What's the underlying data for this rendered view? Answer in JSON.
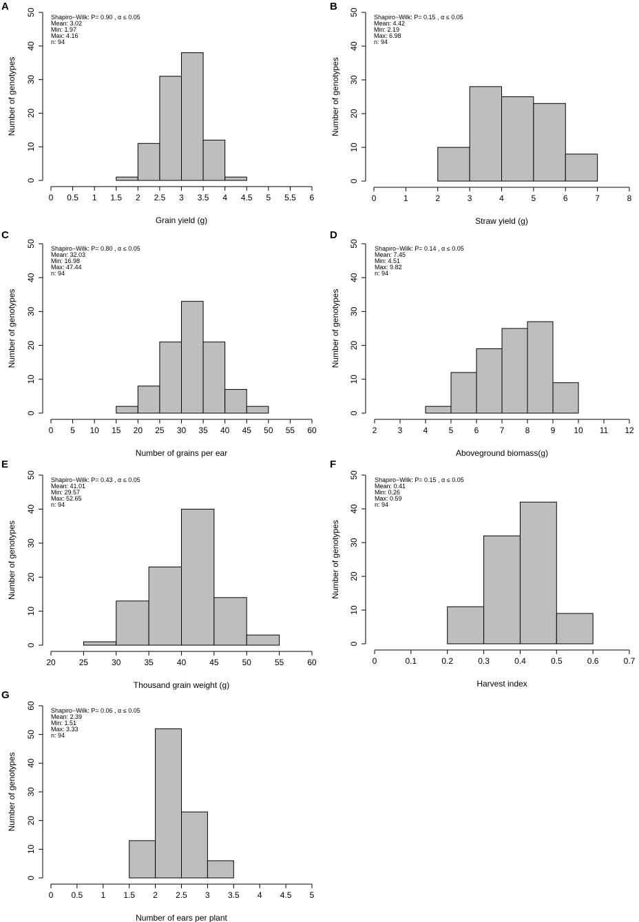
{
  "figure": {
    "bar_fill": "#bebebe",
    "stroke_color": "#000000"
  },
  "chart_data": [
    {
      "id": "A",
      "type": "bar",
      "panel_label": "A",
      "title": "",
      "xlabel": "Grain yield (g)",
      "ylabel": "Number of genotypes",
      "xlim": [
        0,
        6
      ],
      "ylim": [
        0,
        50
      ],
      "x_ticks": [
        "0",
        "0.5",
        "1",
        "1.5",
        "2",
        "2.5",
        "3",
        "3.5",
        "4",
        "4.5",
        "5",
        "5.5",
        "6"
      ],
      "y_ticks": [
        "0",
        "10",
        "20",
        "30",
        "40",
        "50"
      ],
      "bins": [
        [
          1.5,
          2
        ],
        [
          2,
          2.5
        ],
        [
          2.5,
          3
        ],
        [
          3,
          3.5
        ],
        [
          3.5,
          4
        ],
        [
          4,
          4.5
        ]
      ],
      "counts": [
        1,
        11,
        31,
        38,
        12,
        1
      ],
      "stats": [
        "Shapiro−Wilk: P= 0.90 , α ≤ 0.05",
        "Mean: 3.02",
        "Min: 1.97",
        "Max: 4.16",
        "n: 94"
      ]
    },
    {
      "id": "B",
      "type": "bar",
      "panel_label": "B",
      "title": "",
      "xlabel": "Straw yield (g)",
      "ylabel": "Number of genotypes",
      "xlim": [
        0,
        8
      ],
      "ylim": [
        0,
        50
      ],
      "x_ticks": [
        "0",
        "1",
        "2",
        "3",
        "4",
        "5",
        "6",
        "7",
        "8"
      ],
      "y_ticks": [
        "0",
        "10",
        "20",
        "30",
        "40",
        "50"
      ],
      "bins": [
        [
          2,
          3
        ],
        [
          3,
          4
        ],
        [
          4,
          5
        ],
        [
          5,
          6
        ],
        [
          6,
          7
        ]
      ],
      "counts": [
        10,
        28,
        25,
        23,
        8
      ],
      "stats": [
        "Shapiro−Wilk: P= 0.15 , α ≤ 0.05",
        "Mean: 4.42",
        "Min: 2.19",
        "Max: 6.98",
        "n: 94"
      ]
    },
    {
      "id": "C",
      "type": "bar",
      "panel_label": "C",
      "title": "",
      "xlabel": "Number of grains per ear",
      "ylabel": "Number of genotypes",
      "xlim": [
        0,
        60
      ],
      "ylim": [
        0,
        50
      ],
      "x_ticks": [
        "0",
        "5",
        "10",
        "15",
        "20",
        "25",
        "30",
        "35",
        "40",
        "45",
        "50",
        "55",
        "60"
      ],
      "y_ticks": [
        "0",
        "10",
        "20",
        "30",
        "40",
        "50"
      ],
      "bins": [
        [
          15,
          20
        ],
        [
          20,
          25
        ],
        [
          25,
          30
        ],
        [
          30,
          35
        ],
        [
          35,
          40
        ],
        [
          40,
          45
        ],
        [
          45,
          50
        ]
      ],
      "counts": [
        2,
        8,
        21,
        33,
        21,
        7,
        2
      ],
      "stats": [
        "Shapiro−Wilk: P= 0.80 , α ≤ 0.05",
        "Mean: 32.03",
        "Min: 16.98",
        "Max: 47.44",
        "n: 94"
      ]
    },
    {
      "id": "D",
      "type": "bar",
      "panel_label": "D",
      "title": "",
      "xlabel": "Aboveground biomass(g)",
      "ylabel": "Number of genotypes",
      "xlim": [
        2,
        12
      ],
      "ylim": [
        0,
        50
      ],
      "x_ticks": [
        "2",
        "3",
        "4",
        "5",
        "6",
        "7",
        "8",
        "9",
        "10",
        "11",
        "12"
      ],
      "y_ticks": [
        "0",
        "10",
        "20",
        "30",
        "40",
        "50"
      ],
      "bins": [
        [
          4,
          5
        ],
        [
          5,
          6
        ],
        [
          6,
          7
        ],
        [
          7,
          8
        ],
        [
          8,
          9
        ],
        [
          9,
          10
        ]
      ],
      "counts": [
        2,
        12,
        19,
        25,
        27,
        9
      ],
      "stats": [
        "Shapiro−Wilk: P= 0.14 , α ≤ 0.05",
        "Mean: 7.45",
        "Min: 4.51",
        "Max: 9.82",
        "n: 94"
      ]
    },
    {
      "id": "E",
      "type": "bar",
      "panel_label": "E",
      "title": "",
      "xlabel": "Thousand grain weight (g)",
      "ylabel": "Number of genotypes",
      "xlim": [
        20,
        60
      ],
      "ylim": [
        0,
        50
      ],
      "x_ticks": [
        "20",
        "25",
        "30",
        "35",
        "40",
        "45",
        "50",
        "55",
        "60"
      ],
      "y_ticks": [
        "0",
        "10",
        "20",
        "30",
        "40",
        "50"
      ],
      "bins": [
        [
          25,
          30
        ],
        [
          30,
          35
        ],
        [
          35,
          40
        ],
        [
          40,
          45
        ],
        [
          45,
          50
        ],
        [
          50,
          55
        ]
      ],
      "counts": [
        1,
        13,
        23,
        40,
        14,
        3
      ],
      "stats": [
        "Shapiro−Wilk: P= 0.43 , α ≤ 0.05",
        "Mean: 41.01",
        "Min: 29.57",
        "Max: 52.65",
        "n: 94"
      ]
    },
    {
      "id": "F",
      "type": "bar",
      "panel_label": "F",
      "title": "",
      "xlabel": "Harvest index",
      "ylabel": "Number of genotypes",
      "xlim": [
        0,
        0.7
      ],
      "ylim": [
        0,
        50
      ],
      "x_ticks": [
        "0",
        "0.1",
        "0.2",
        "0.3",
        "0.4",
        "0.5",
        "0.6",
        "0.7"
      ],
      "y_ticks": [
        "0",
        "10",
        "20",
        "30",
        "40",
        "50"
      ],
      "bins": [
        [
          0.2,
          0.3
        ],
        [
          0.3,
          0.4
        ],
        [
          0.4,
          0.5
        ],
        [
          0.5,
          0.6
        ]
      ],
      "counts": [
        11,
        32,
        42,
        9
      ],
      "stats": [
        "Shapiro−Wilk: P= 0.15 , α ≤ 0.05",
        "Mean: 0.41",
        "Min: 0.26",
        "Max: 0.59",
        "n: 94"
      ]
    },
    {
      "id": "G",
      "type": "bar",
      "panel_label": "G",
      "title": "",
      "xlabel": "Number of ears per plant",
      "ylabel": "Number of genotypes",
      "xlim": [
        0,
        5
      ],
      "ylim": [
        0,
        60
      ],
      "x_ticks": [
        "0",
        "0.5",
        "1",
        "1.5",
        "2",
        "2.5",
        "3",
        "3.5",
        "4",
        "4.5",
        "5"
      ],
      "y_ticks": [
        "0",
        "10",
        "20",
        "30",
        "40",
        "50",
        "60"
      ],
      "bins": [
        [
          1.5,
          2
        ],
        [
          2,
          2.5
        ],
        [
          2.5,
          3
        ],
        [
          3,
          3.5
        ]
      ],
      "counts": [
        13,
        52,
        23,
        6
      ],
      "stats": [
        "Shapiro−Wilk: P= 0.06 , α ≤ 0.05",
        "Mean: 2.39",
        "Min: 1.51",
        "Max: 3.33",
        "n: 94"
      ]
    }
  ]
}
